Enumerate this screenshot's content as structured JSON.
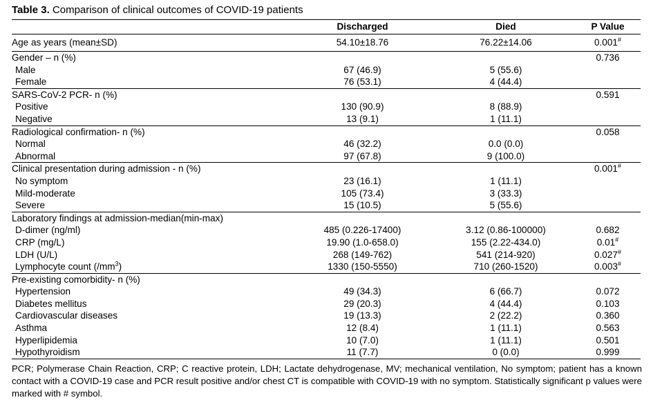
{
  "title": {
    "bold": "Table 3.",
    "text": "Comparison of clinical outcomes of COVID-19 patients"
  },
  "columns": [
    "",
    "Discharged",
    "Died",
    "P Value"
  ],
  "age": {
    "label": "Age as years  (mean±SD)",
    "discharged": "54.10±18.76",
    "died": "76.22±14.06",
    "p": "0.001",
    "mark": "#"
  },
  "gender": {
    "label": "Gender – n (%)",
    "p": "0.736",
    "rows": [
      {
        "label": "Male",
        "discharged": "67 (46.9)",
        "died": "5 (55.6)"
      },
      {
        "label": "Female",
        "discharged": "76 (53.1)",
        "died": "4 (44.4)"
      }
    ]
  },
  "pcr": {
    "label": "SARS-CoV-2 PCR- n (%)",
    "p": "0.591",
    "rows": [
      {
        "label": "Positive",
        "discharged": "130 (90.9)",
        "died": "8 (88.9)"
      },
      {
        "label": "Negative",
        "discharged": "13 (9.1)",
        "died": "1 (11.1)"
      }
    ]
  },
  "radio": {
    "label": "Radiological confirmation- n (%)",
    "p": "0.058",
    "rows": [
      {
        "label": "Normal",
        "discharged": "46 (32.2)",
        "died": "0.0 (0.0)"
      },
      {
        "label": "Abnormal",
        "discharged": "97 (67.8)",
        "died": "9 (100.0)"
      }
    ]
  },
  "clinical": {
    "label": "Clinical presentation during admission - n (%)",
    "p": "0.001",
    "mark": "#",
    "rows": [
      {
        "label": "No symptom",
        "discharged": "23 (16.1)",
        "died": "1 (11.1)"
      },
      {
        "label": "Mild-moderate",
        "discharged": "105 (73.4)",
        "died": "3 (33.3)"
      },
      {
        "label": "Severe",
        "discharged": "15 (10.5)",
        "died": "5 (55.6)"
      }
    ]
  },
  "lab": {
    "label": "Laboratory findings at admission-median(min-max)",
    "rows": [
      {
        "label": "D-dimer (ng/ml)",
        "discharged": "485 (0.226-17400)",
        "died": "3.12 (0.86-100000)",
        "p": "0.682",
        "mark": ""
      },
      {
        "label": "CRP (mg/L)",
        "discharged": "19.90 (1.0-658.0)",
        "died": "155 (2.22-434.0)",
        "p": "0.01",
        "mark": "#"
      },
      {
        "label": "LDH (U/L)",
        "discharged": "268 (149-762)",
        "died": "541 (214-920)",
        "p": "0.027",
        "mark": "#"
      },
      {
        "label": "Lymphocyte count (/mm",
        "label_sup": "3",
        "label_end": ")",
        "discharged": "1330 (150-5550)",
        "died": "710 (260-1520)",
        "p": "0.003",
        "mark": "#"
      }
    ]
  },
  "comorb": {
    "label": "Pre-existing comorbidity- n (%)",
    "rows": [
      {
        "label": "Hypertension",
        "discharged": "49 (34.3)",
        "died": "6 (66.7)",
        "p": "0.072"
      },
      {
        "label": "Diabetes mellitus",
        "discharged": "29 (20.3)",
        "died": "4 (44.4)",
        "p": "0.103"
      },
      {
        "label": "Cardiovascular diseases",
        "discharged": "19 (13.3)",
        "died": "2 (22.2)",
        "p": "0.360"
      },
      {
        "label": "Asthma",
        "discharged": "12 (8.4)",
        "died": "1 (11.1)",
        "p": "0.563"
      },
      {
        "label": "Hyperlipidemia",
        "discharged": "10 (7.0)",
        "died": "1 (11.1)",
        "p": "0.501"
      },
      {
        "label": "Hypothyroidism",
        "discharged": "11 (7.7)",
        "died": "0 (0.0)",
        "p": "0.999"
      }
    ]
  },
  "footnote": "PCR; Polymerase Chain Reaction, CRP; C reactive protein, LDH; Lactate dehydrogenase, MV; mechanical ventilation, No symptom; patient has a known contact with a COVID-19 case and PCR result positive and/or chest CT is compatible with COVID-19 with no symptom. Statistically significant p values were marked with # symbol."
}
